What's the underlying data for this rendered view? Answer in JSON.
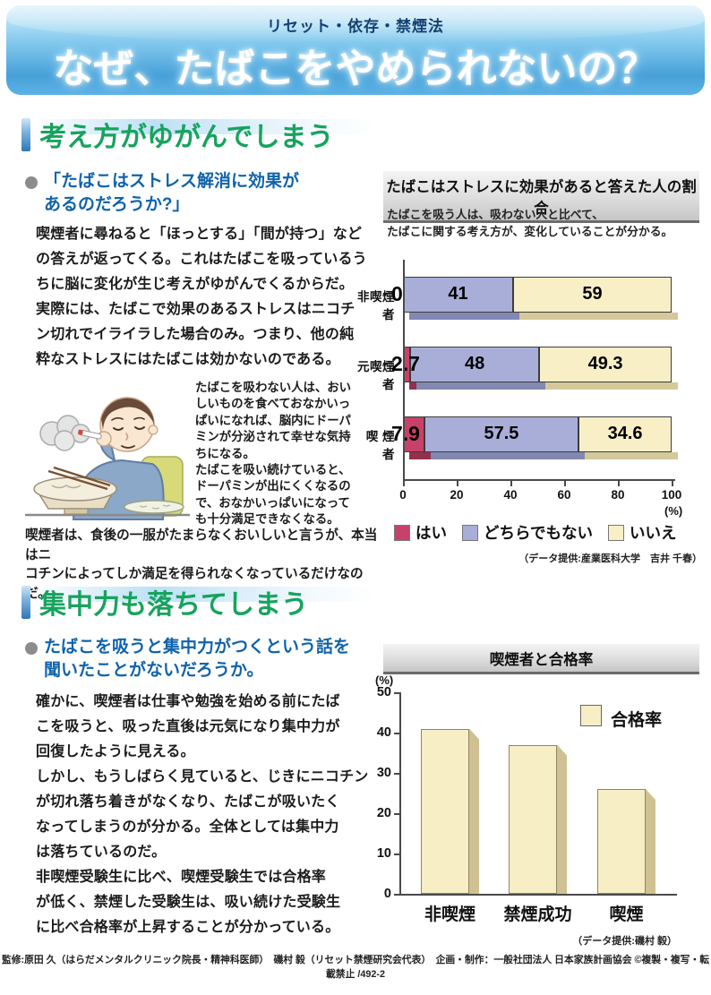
{
  "header": {
    "kicker": "リセット・依存・禁煙法",
    "title": "なぜ、たばこをやめられないの？"
  },
  "section1": {
    "heading": "考え方がゆがんでしまう",
    "lead": "「たばこはストレス解消に効果が\nあるのだろうか?」",
    "body": "喫煙者に尋ねると「ほっとする」「間が持つ」など\nの答えが返ってくる。これはたばこを吸っているう\nちに脳に変化が生じ考えがゆがんでくるからだ。\n実際には、たばこで効果のあるストレスはニコチ\nン切れでイライラした場合のみ。つまり、他の純\n粋なストレスにはたばこは効かないのである。",
    "aside": "たばこを吸わない人は、おい\nしいものを食べておなかいっ\nぱいになれば、脳内にドーパ\nミンが分泌されて幸せな気持\nちになる。\nたばこを吸い続けていると、\nドーパミンが出にくくなるの\nで、おなかいっぱいになって\nも十分満足できなくなる。",
    "note": "喫煙者は、食後の一服がたまらなくおいしいと言うが、本当はニ\nコチンによってしか満足を得られなくなっているだけなのだ。",
    "illustration": "smoking-man-after-meal"
  },
  "section2": {
    "heading": "集中力も落ちてしまう",
    "lead": "たばこを吸うと集中力がつくという話を\n聞いたことがないだろうか。",
    "body": "確かに、喫煙者は仕事や勉強を始める前にたば\nこを吸うと、吸った直後は元気になり集中力が\n回復したように見える。\nしかし、もうしばらく見ていると、じきにニコチン\nが切れ落ち着きがなくなり、たばこが吸いたく\nなってしまうのが分かる。全体としては集中力\nは落ちているのだ。\n非喫煙受験生に比べ、喫煙受験生では合格率\nが低く、禁煙した受験生は、吸い続けた受験生\nに比べ合格率が上昇することが分かっている。"
  },
  "footer": {
    "credits": "監修:原田 久（はらだメンタルクリニック院長・精神科医師）　磯村 毅（リセット禁煙研究会代表）　企画・制作：一般社団法人 日本家族計画協会 ©複製・複写・転載禁止 /492-2"
  },
  "chart_data": [
    {
      "type": "bar",
      "orientation": "horizontal-stacked",
      "title": "たばこはストレスに効果があると答えた人の割合",
      "subtitle": "たばこを吸う人は、吸わない人と比べて、\nたばこに関する考え方が、変化していることが分かる。",
      "categories": [
        "非喫煙者",
        "元喫煙者",
        "喫 煙 者"
      ],
      "series": [
        {
          "name": "はい",
          "color": "#c8416a",
          "shade": "#93304c",
          "values": [
            0,
            2.7,
            7.9
          ]
        },
        {
          "name": "どちらでもない",
          "color": "#a9aed8",
          "shade": "#8288b2",
          "values": [
            41,
            48,
            57.5
          ]
        },
        {
          "name": "いいえ",
          "color": "#f9efc7",
          "shade": "#d5c99b",
          "values": [
            59,
            49.3,
            34.6
          ]
        }
      ],
      "value_labels": [
        [
          "0",
          "41",
          "59"
        ],
        [
          "2.7",
          "48",
          "49.3"
        ],
        [
          "7.9",
          "57.5",
          "34.6"
        ]
      ],
      "xticks": [
        "0",
        "20",
        "40",
        "60",
        "80",
        "100"
      ],
      "unit": "(%)",
      "xlim": [
        0,
        100
      ],
      "legend_position": "bottom",
      "grid": false,
      "source": "（データ提供:産業医科大学　吉井 千春）"
    },
    {
      "type": "bar",
      "orientation": "vertical",
      "title": "喫煙者と合格率",
      "categories": [
        "非喫煙",
        "禁煙成功",
        "喫煙"
      ],
      "values": [
        41,
        37,
        26
      ],
      "legend": [
        "合格率"
      ],
      "bar_color": "#f8eec6",
      "bar_side_color": "#cfc191",
      "yticks": [
        "50",
        "40",
        "30",
        "20",
        "10",
        "0"
      ],
      "unit": "(%)",
      "ylim": [
        0,
        50
      ],
      "legend_position": "top-right",
      "grid": false,
      "source": "（データ提供:磯村 毅）"
    }
  ]
}
